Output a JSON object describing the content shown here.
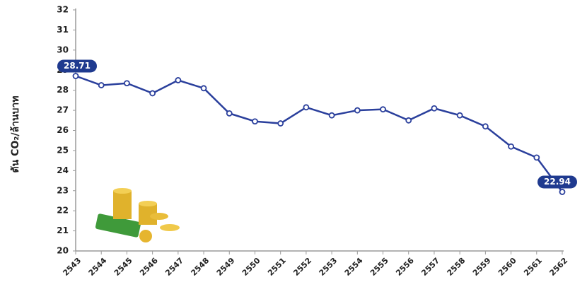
{
  "chart_data": {
    "type": "line",
    "y_label": "ตัน CO₂/ล้านบาท",
    "categories": [
      "2543",
      "2544",
      "2545",
      "2546",
      "2547",
      "2548",
      "2549",
      "2550",
      "2551",
      "2552",
      "2553",
      "2554",
      "2555",
      "2556",
      "2557",
      "2558",
      "2559",
      "2560",
      "2561",
      "2562"
    ],
    "series": [
      {
        "color": "#2a3f9c",
        "values": [
          28.71,
          28.25,
          28.35,
          27.85,
          28.5,
          28.1,
          26.85,
          26.45,
          26.35,
          27.15,
          26.75,
          27.0,
          27.05,
          26.5,
          27.1,
          26.75,
          26.2,
          25.2,
          24.65,
          22.94
        ],
        "value_labels": [
          "28.71",
          null,
          null,
          null,
          null,
          null,
          null,
          null,
          null,
          null,
          null,
          null,
          null,
          null,
          null,
          null,
          null,
          null,
          null,
          "22.94"
        ]
      }
    ],
    "ylim": [
      20,
      32
    ],
    "yticks": [
      20,
      21,
      22,
      23,
      24,
      25,
      26,
      27,
      28,
      29,
      30,
      31,
      32
    ]
  }
}
